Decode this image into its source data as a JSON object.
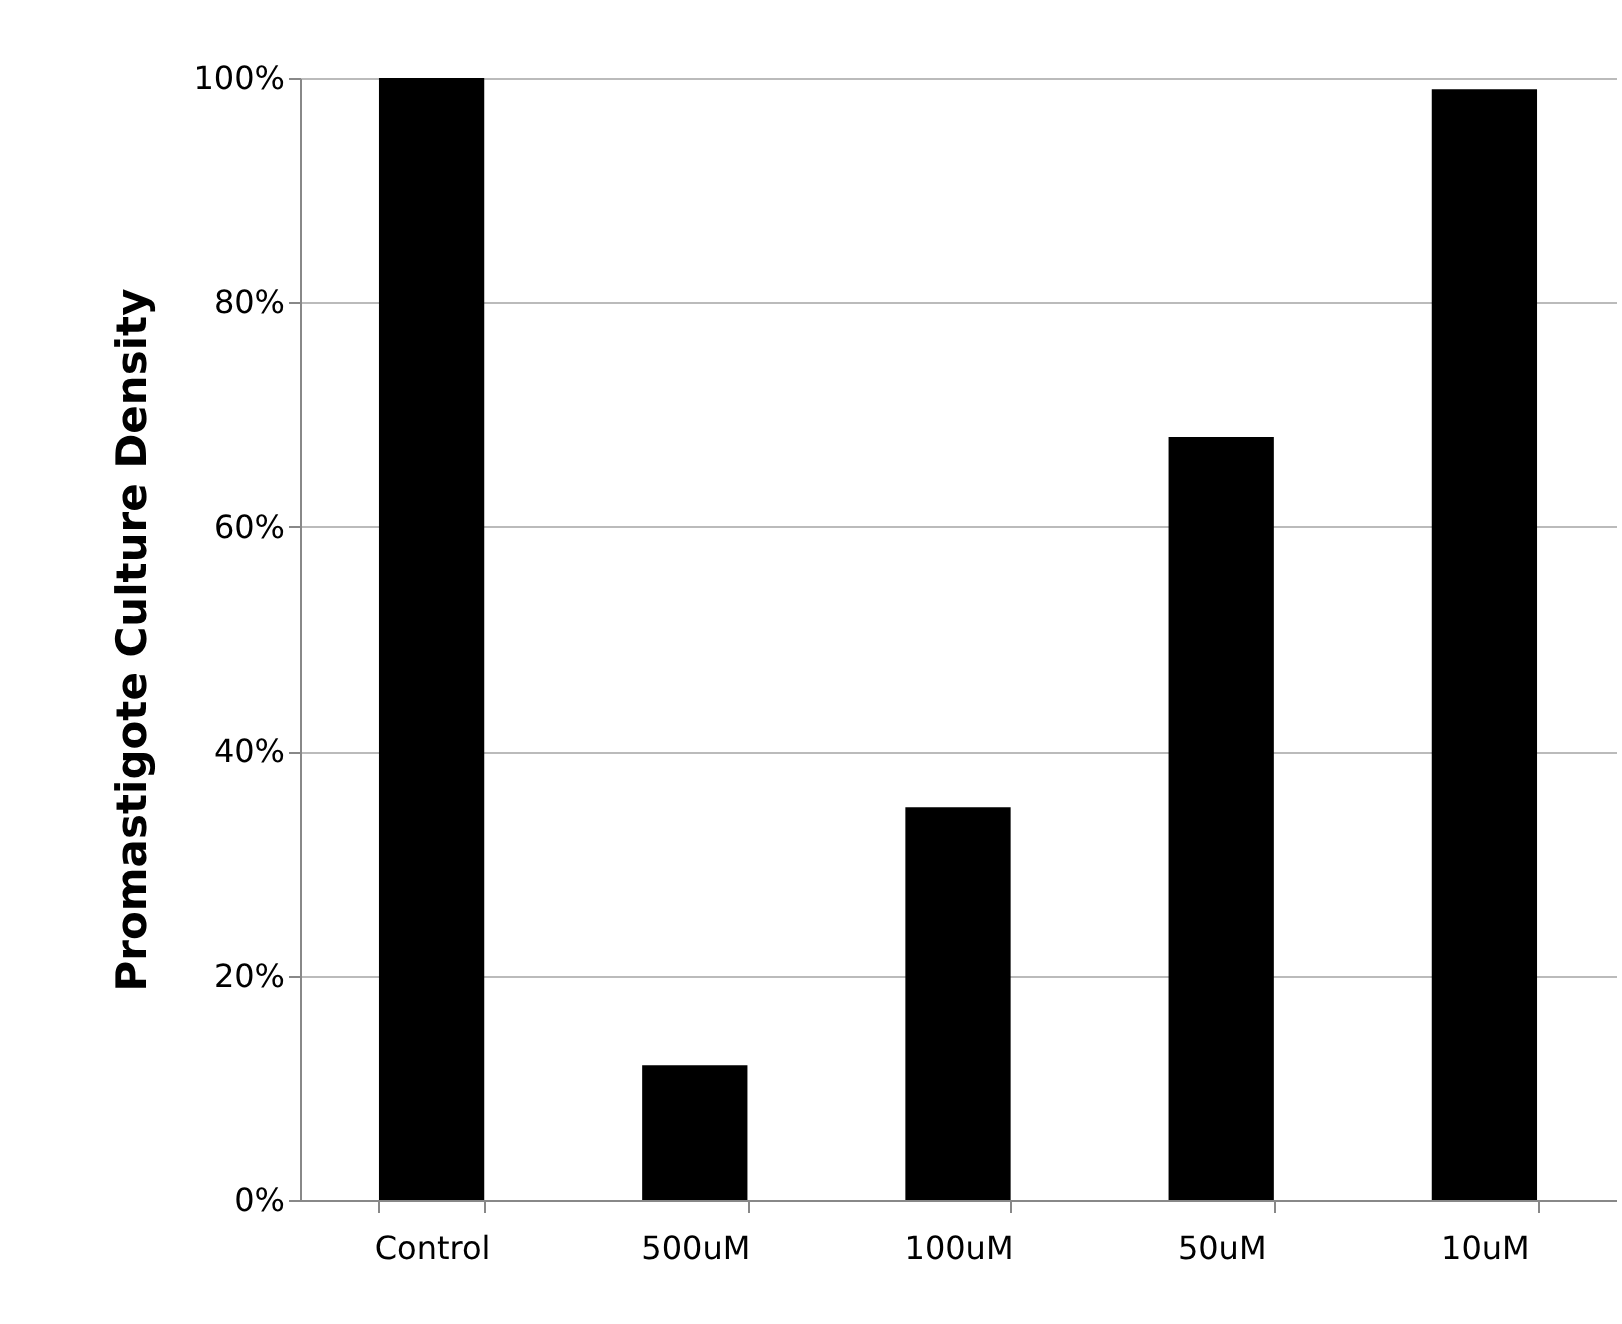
{
  "chart_data": {
    "type": "bar",
    "ylabel": "Promastigote Culture Density",
    "categories": [
      "Control",
      "500uM",
      "100uM",
      "50uM",
      "10uM"
    ],
    "values": [
      100,
      12,
      35,
      68,
      99
    ],
    "color": "#000000",
    "ylim": [
      0,
      100
    ],
    "yticks": [
      {
        "value": 0,
        "label": "0%"
      },
      {
        "value": 20,
        "label": "20%"
      },
      {
        "value": 40,
        "label": "40%"
      },
      {
        "value": 60,
        "label": "60%"
      },
      {
        "value": 80,
        "label": "80%"
      },
      {
        "value": 100,
        "label": "100%"
      }
    ],
    "grid": "y"
  }
}
